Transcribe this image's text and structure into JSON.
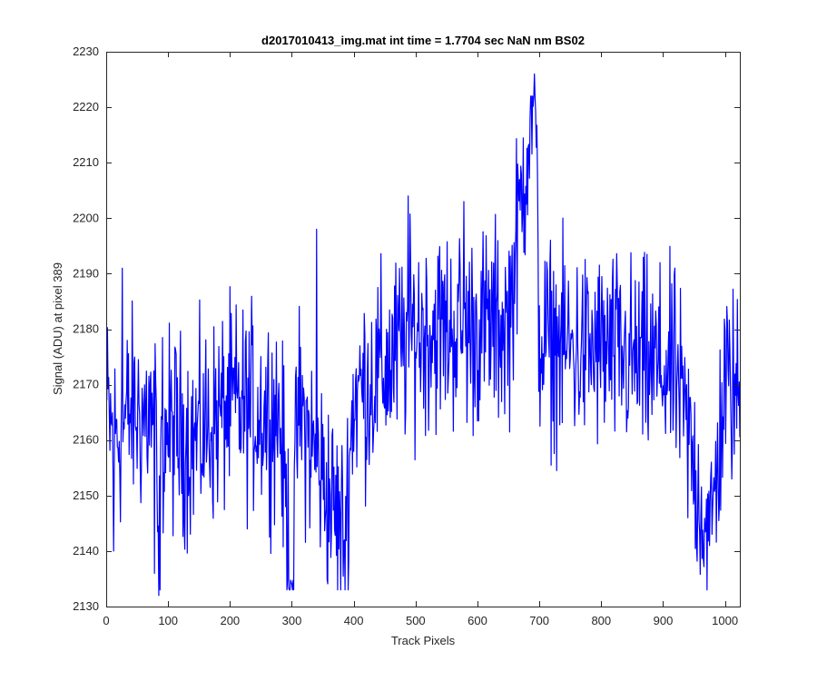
{
  "chart_data": {
    "type": "line",
    "title": "d2017010413_img.mat int time = 1.7704 sec  NaN nm BS02",
    "xlabel": "Track Pixels",
    "ylabel": "Signal (ADU) at pixel 389",
    "xlim": [
      0,
      1024
    ],
    "ylim": [
      2130,
      2230
    ],
    "xticks": [
      0,
      100,
      200,
      300,
      400,
      500,
      600,
      700,
      800,
      900,
      1000
    ],
    "yticks": [
      2130,
      2140,
      2150,
      2160,
      2170,
      2180,
      2190,
      2200,
      2210,
      2220,
      2230
    ],
    "grid": false,
    "legend": "none",
    "series": [
      {
        "color": "#0000ff",
        "x_start": 1,
        "x_step": 1,
        "anchors": [
          [
            0,
            2166
          ],
          [
            12,
            2160
          ],
          [
            40,
            2165
          ],
          [
            80,
            2164
          ],
          [
            85,
            2132
          ],
          [
            90,
            2162
          ],
          [
            140,
            2160
          ],
          [
            200,
            2166
          ],
          [
            280,
            2165
          ],
          [
            300,
            2134
          ],
          [
            310,
            2166
          ],
          [
            385,
            2142
          ],
          [
            400,
            2168
          ],
          [
            460,
            2174
          ],
          [
            500,
            2180
          ],
          [
            550,
            2180
          ],
          [
            600,
            2180
          ],
          [
            650,
            2181
          ],
          [
            692,
            2226
          ],
          [
            700,
            2178
          ],
          [
            760,
            2176
          ],
          [
            800,
            2176
          ],
          [
            860,
            2174
          ],
          [
            920,
            2172
          ],
          [
            975,
            2141
          ],
          [
            1000,
            2170
          ],
          [
            1024,
            2168
          ]
        ],
        "notable_points": [
          {
            "x": 692,
            "y": 2226
          },
          {
            "x": 85,
            "y": 2132
          },
          {
            "x": 300,
            "y": 2134
          },
          {
            "x": 975,
            "y": 2141
          },
          {
            "x": 78,
            "y": 2136
          },
          {
            "x": 12,
            "y": 2140
          },
          {
            "x": 385,
            "y": 2142
          },
          {
            "x": 488,
            "y": 2204
          },
          {
            "x": 578,
            "y": 2203
          },
          {
            "x": 26,
            "y": 2191
          },
          {
            "x": 340,
            "y": 2198
          }
        ],
        "noise_amplitude": 9
      }
    ]
  }
}
